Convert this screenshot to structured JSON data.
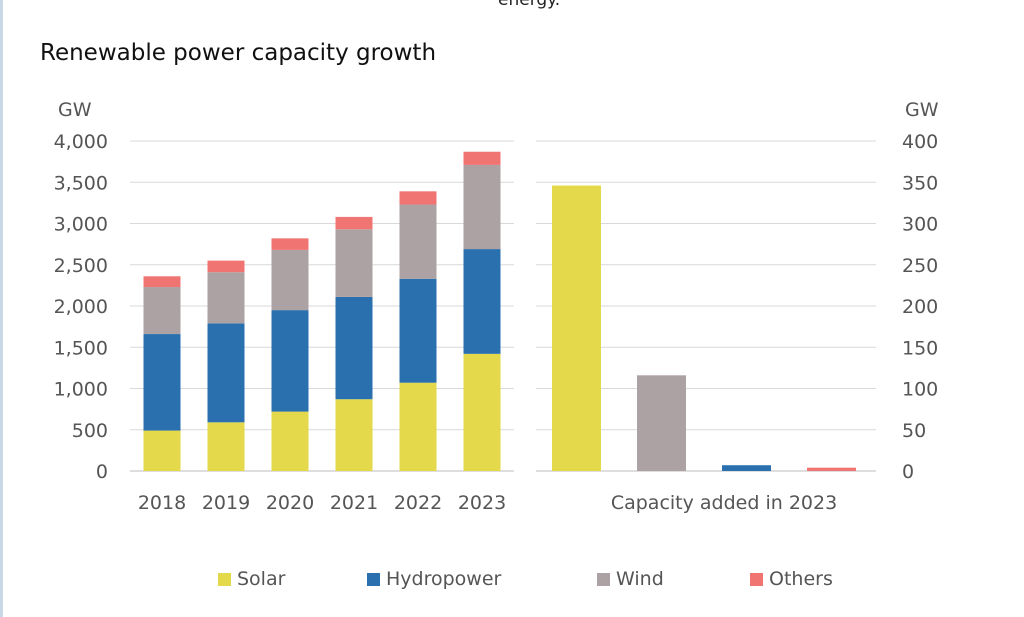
{
  "header": {
    "cut_text": "energy.",
    "title": "Renewable power capacity growth"
  },
  "chart_data": [
    {
      "type": "bar",
      "stacked": true,
      "ylabel": "GW",
      "ylim": [
        0,
        4000
      ],
      "yticks": [
        "0",
        "500",
        "1,000",
        "1,500",
        "2,000",
        "2,500",
        "3,000",
        "3,500",
        "4,000"
      ],
      "grid": true,
      "categories": [
        "2018",
        "2019",
        "2020",
        "2021",
        "2022",
        "2023"
      ],
      "series": [
        {
          "name": "Solar",
          "color": "#e3d94a",
          "values": [
            490,
            590,
            720,
            870,
            1070,
            1420
          ]
        },
        {
          "name": "Hydropower",
          "color": "#2b70ae",
          "values": [
            1170,
            1200,
            1230,
            1240,
            1260,
            1270
          ]
        },
        {
          "name": "Wind",
          "color": "#ada2a3",
          "values": [
            570,
            620,
            730,
            820,
            900,
            1020
          ]
        },
        {
          "name": "Others",
          "color": "#ef7472",
          "values": [
            130,
            140,
            140,
            150,
            160,
            160
          ]
        }
      ]
    },
    {
      "type": "bar",
      "ylabel": "GW",
      "ylim": [
        0,
        400
      ],
      "yticks": [
        "0",
        "50",
        "100",
        "150",
        "200",
        "250",
        "300",
        "350",
        "400"
      ],
      "grid": true,
      "xlabel": "Capacity added in 2023",
      "categories": [
        "Solar",
        "Wind",
        "Hydropower",
        "Others"
      ],
      "values": [
        346,
        116,
        7,
        4
      ],
      "colors": [
        "#e3d94a",
        "#ada2a3",
        "#2b70ae",
        "#ef7472"
      ]
    }
  ],
  "legend": [
    {
      "label": "Solar",
      "color": "#e3d94a"
    },
    {
      "label": "Hydropower",
      "color": "#2b70ae"
    },
    {
      "label": "Wind",
      "color": "#ada2a3"
    },
    {
      "label": "Others",
      "color": "#ef7472"
    }
  ]
}
